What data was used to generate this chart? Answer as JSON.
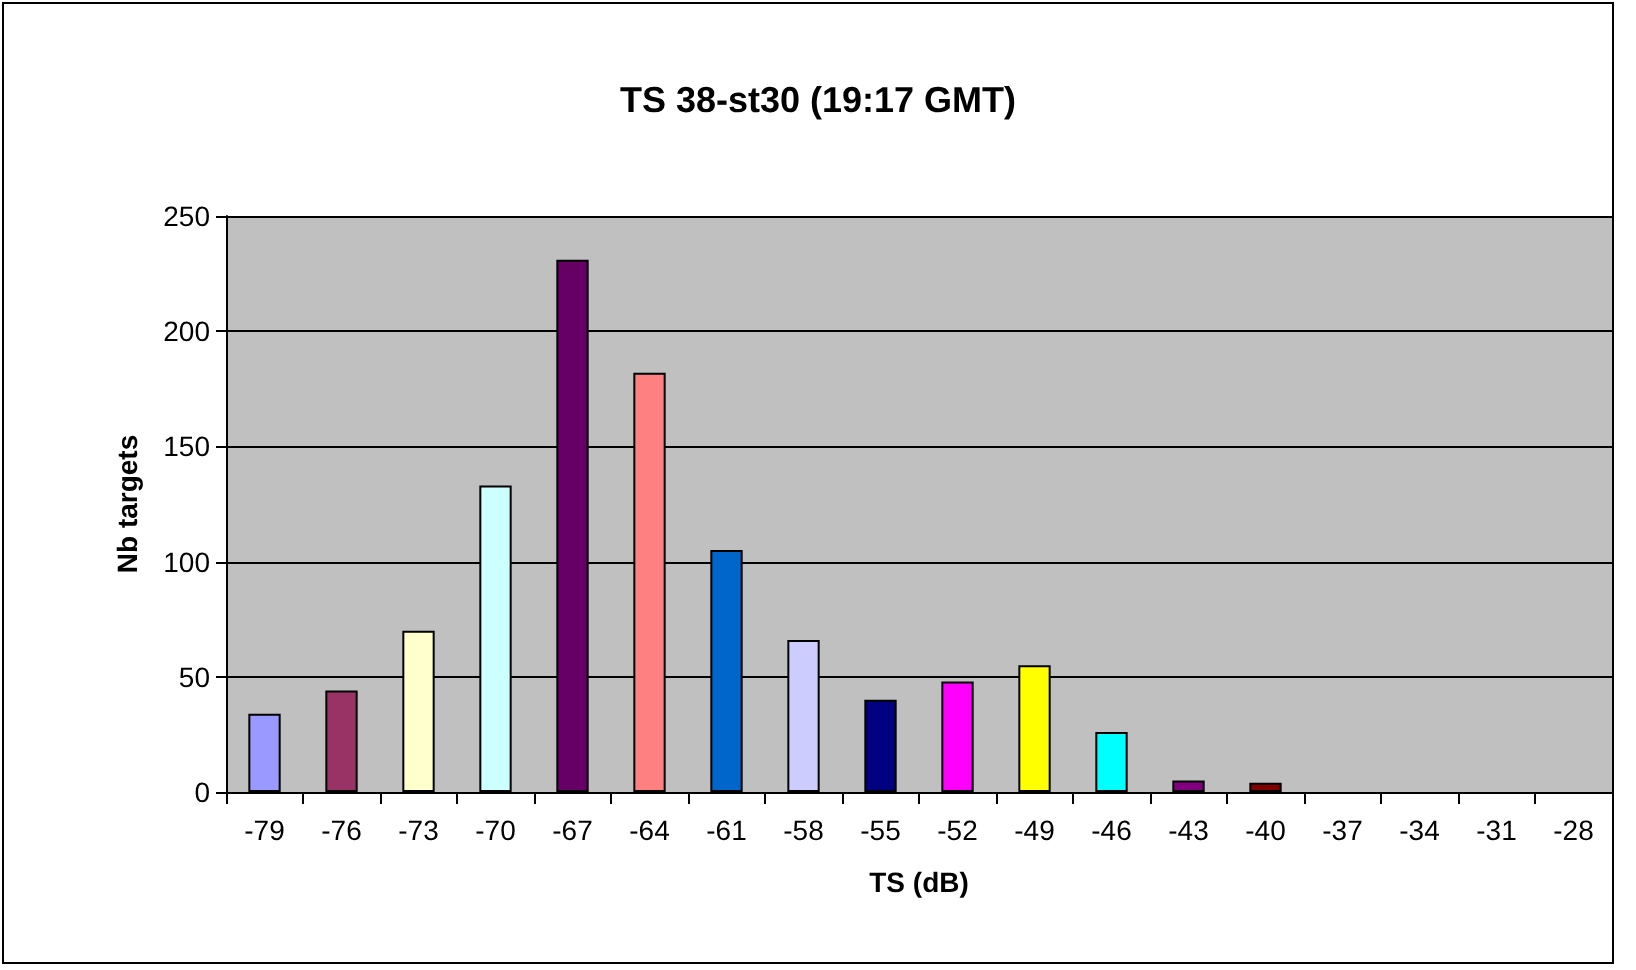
{
  "chart_data": {
    "type": "bar",
    "title": "TS 38-st30 (19:17 GMT)",
    "xlabel": "TS (dB)",
    "ylabel": "Nb targets",
    "categories": [
      "-79",
      "-76",
      "-73",
      "-70",
      "-67",
      "-64",
      "-61",
      "-58",
      "-55",
      "-52",
      "-49",
      "-46",
      "-43",
      "-40",
      "-37",
      "-34",
      "-31",
      "-28"
    ],
    "values": [
      34,
      44,
      70,
      133,
      231,
      182,
      105,
      66,
      40,
      48,
      55,
      26,
      5,
      4,
      0,
      0,
      0,
      0
    ],
    "colors": [
      "#9999ff",
      "#993366",
      "#ffffcc",
      "#ccffff",
      "#660066",
      "#ff8080",
      "#0066cc",
      "#ccccff",
      "#000080",
      "#ff00ff",
      "#ffff00",
      "#00ffff",
      "#800080",
      "#800000",
      "#008080",
      "#0000ff",
      "#00ccff",
      "#ccffff"
    ],
    "ylim": [
      0,
      250
    ],
    "yticks": [
      0,
      50,
      100,
      150,
      200,
      250
    ],
    "grid": "y"
  }
}
